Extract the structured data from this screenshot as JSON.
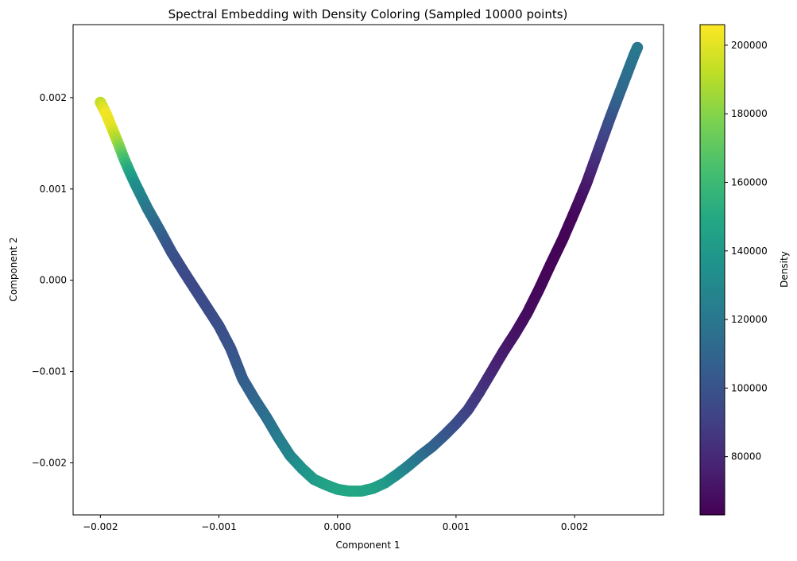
{
  "chart_data": {
    "type": "scatter",
    "title": "Spectral Embedding with Density Coloring (Sampled 10000 points)",
    "xlabel": "Component 1",
    "ylabel": "Component 2",
    "xlim": [
      -0.00223,
      0.00275
    ],
    "ylim": [
      -0.00257,
      0.0028
    ],
    "grid": false,
    "x_ticks": [
      -0.002,
      -0.001,
      0.0,
      0.001,
      0.002
    ],
    "x_tick_labels": [
      "−0.002",
      "−0.001",
      "0.000",
      "0.001",
      "0.002"
    ],
    "y_ticks": [
      -0.002,
      -0.001,
      0.0,
      0.001,
      0.002
    ],
    "y_tick_labels": [
      "−0.002",
      "−0.001",
      "0.000",
      "0.001",
      "0.002"
    ],
    "colorbar": {
      "label": "Density",
      "range": [
        63000,
        206000
      ],
      "ticks": [
        80000,
        100000,
        120000,
        140000,
        160000,
        180000,
        200000
      ],
      "tick_labels": [
        "80000",
        "100000",
        "120000",
        "140000",
        "160000",
        "180000",
        "200000"
      ],
      "colormap": "viridis"
    },
    "series": [
      {
        "points": [
          [
            -0.002,
            0.00195,
            192000
          ],
          [
            -0.00195,
            0.00182,
            204000
          ],
          [
            -0.0019,
            0.00166,
            200000
          ],
          [
            -0.00185,
            0.0015,
            185000
          ],
          [
            -0.0018,
            0.00133,
            165000
          ],
          [
            -0.00175,
            0.00118,
            148000
          ],
          [
            -0.0017,
            0.00104,
            135000
          ],
          [
            -0.0016,
            0.00078,
            120000
          ],
          [
            -0.0015,
            0.00055,
            110000
          ],
          [
            -0.0014,
            0.00031,
            100000
          ],
          [
            -0.0013,
            0.0001,
            96000
          ],
          [
            -0.0012,
            -0.0001,
            95000
          ],
          [
            -0.0011,
            -0.0003,
            96000
          ],
          [
            -0.001,
            -0.0005,
            98000
          ],
          [
            -0.0009,
            -0.00075,
            100000
          ],
          [
            -0.0008,
            -0.00108,
            105000
          ],
          [
            -0.0007,
            -0.0013,
            110000
          ],
          [
            -0.0006,
            -0.0015,
            115000
          ],
          [
            -0.0005,
            -0.00172,
            122000
          ],
          [
            -0.0004,
            -0.00192,
            128000
          ],
          [
            -0.0003,
            -0.00206,
            135000
          ],
          [
            -0.0002,
            -0.00218,
            140000
          ],
          [
            -0.0001,
            -0.00224,
            145000
          ],
          [
            0.0,
            -0.00229,
            147000
          ],
          [
            0.0001,
            -0.00231,
            148000
          ],
          [
            0.0002,
            -0.00231,
            148000
          ],
          [
            0.0003,
            -0.00228,
            146000
          ],
          [
            0.0004,
            -0.00222,
            142000
          ],
          [
            0.0005,
            -0.00213,
            135000
          ],
          [
            0.0006,
            -0.00203,
            126000
          ],
          [
            0.0007,
            -0.00192,
            118000
          ],
          [
            0.0008,
            -0.00182,
            110000
          ],
          [
            0.0009,
            -0.0017,
            104000
          ],
          [
            0.001,
            -0.00157,
            98000
          ],
          [
            0.0011,
            -0.00142,
            92000
          ],
          [
            0.0012,
            -0.00122,
            86000
          ],
          [
            0.0013,
            -0.001,
            80000
          ],
          [
            0.0014,
            -0.00078,
            75000
          ],
          [
            0.0015,
            -0.00058,
            71000
          ],
          [
            0.0016,
            -0.00036,
            68000
          ],
          [
            0.0017,
            -0.0001,
            66000
          ],
          [
            0.0018,
            0.00018,
            65000
          ],
          [
            0.0019,
            0.00045,
            64000
          ],
          [
            0.002,
            0.00075,
            66000
          ],
          [
            0.0021,
            0.00106,
            72000
          ],
          [
            0.0022,
            0.00142,
            85000
          ],
          [
            0.0023,
            0.00178,
            98000
          ],
          [
            0.0024,
            0.00212,
            112000
          ],
          [
            0.0025,
            0.00246,
            118000
          ],
          [
            0.00253,
            0.00255,
            120000
          ]
        ]
      }
    ]
  }
}
